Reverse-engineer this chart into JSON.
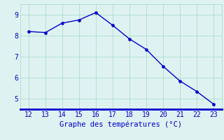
{
  "x": [
    12,
    13,
    14,
    15,
    16,
    17,
    18,
    19,
    20,
    21,
    22,
    23
  ],
  "y": [
    8.2,
    8.15,
    8.6,
    8.75,
    9.1,
    8.5,
    7.85,
    7.35,
    6.55,
    5.85,
    5.35,
    4.75
  ],
  "xlabel": "Graphe des températures (°C)",
  "xlim": [
    11.5,
    23.5
  ],
  "ylim": [
    4.5,
    9.5
  ],
  "xticks": [
    12,
    13,
    14,
    15,
    16,
    17,
    18,
    19,
    20,
    21,
    22,
    23
  ],
  "yticks": [
    5,
    6,
    7,
    8,
    9
  ],
  "line_color": "#0000cc",
  "marker_color": "#0000cc",
  "bg_color": "#dff2f2",
  "grid_color": "#aaddcc",
  "axis_color": "#0000cc",
  "tick_color": "#0000cc",
  "label_color": "#0000cc",
  "xlabel_fontsize": 7.5,
  "tick_fontsize": 7,
  "line_width": 1.0,
  "marker_size": 2.8
}
